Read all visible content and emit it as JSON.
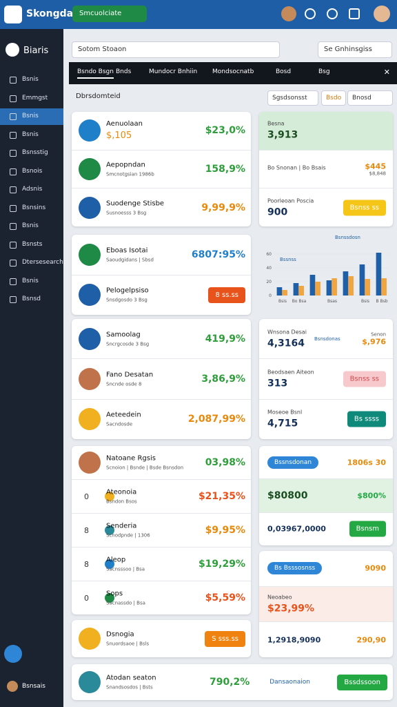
{
  "header": {
    "brand": "Skongdal",
    "selector": "Smcuolciate"
  },
  "sidebar": {
    "title": "Biaris",
    "active": 2,
    "items": [
      "Bsnis",
      "Emmgst",
      "Bsnis",
      "Bsnis",
      "Bsnsstig",
      "Bsnois",
      "Adsnis",
      "Bsnsins",
      "Bsnis",
      "Bsnsts",
      "Dtersesearch",
      "Bsnis",
      "Bsnsd"
    ],
    "user": "Bsnsais"
  },
  "search": {
    "placeholder": "Sotom Stoaon",
    "dropdown": "Se Gnhinsgiss"
  },
  "tabs": [
    "Bsndo Bsgn",
    "Bnds",
    "Mundocr Bnhiin",
    "Mondsocnatb",
    "Bosd",
    "Bsg"
  ],
  "filter": {
    "title": "Dbrsdomteid",
    "buttons": [
      "Sgsdsonsst",
      "Bsdo",
      "Bnosd"
    ]
  },
  "left_cards": [
    {
      "rows": [
        {
          "title": "Aenuolaan",
          "subtitle": "$,105",
          "value": "$23,0%",
          "color": "#2e9e3a"
        },
        {
          "title": "Aepopndan",
          "subtitle": "Smcnotgsian 1986b",
          "value": "158,9%",
          "color": "#2e9e3a"
        },
        {
          "title": "Suodenge Stisbe",
          "subtitle": "Susnoesss 3 Bsg",
          "value": "9,99,9%",
          "color": "#e8890c"
        }
      ]
    },
    {
      "rows": [
        {
          "title": "Eboas Isotai",
          "subtitle": "Saoudgidans | Sbsd",
          "value": "6807:95%",
          "color": "#1f7fc9"
        },
        {
          "title": "Pelogelpsiso",
          "subtitle": "Snsdgosdo 3 Bsg",
          "button": "8 ss.ss",
          "color": "#e8531c"
        }
      ]
    },
    {
      "rows": [
        {
          "title": "Samoolag",
          "subtitle": "Sncrgcosde 3 Bsg",
          "value": "419,9%",
          "color": "#2e9e3a"
        },
        {
          "title": "Fano Desatan",
          "subtitle": "Sncnde osde 8",
          "value": "3,86,9%",
          "color": "#2e9e3a"
        },
        {
          "title": "Aeteedein",
          "subtitle": "Sacndosde",
          "value": "2,087,99%",
          "color": "#e8890c"
        }
      ]
    },
    {
      "rows": [
        {
          "title": "Natoane Rgsis",
          "subtitle": "Scnoion | Bsnde | Bsde Bsnsdon",
          "value": "03,98%",
          "color": "#2e9e3a"
        },
        {
          "index": "0",
          "title": "Ateonoia",
          "subtitle": "Bsndon Bsos",
          "value": "$21,35%",
          "color": "#e8531c"
        },
        {
          "index": "8",
          "title": "Senderia",
          "subtitle": "Scnodpnde | 1306",
          "value": "$9,95%",
          "color": "#e8890c"
        },
        {
          "index": "8",
          "title": "Aleop",
          "subtitle": "Sacnsssoo | Bsa",
          "value": "$19,29%",
          "color": "#2e9e3a"
        },
        {
          "index": "0",
          "title": "Sops",
          "subtitle": "Sacnassdo | Bsa",
          "value": "$5,59%",
          "color": "#e8531c"
        }
      ]
    },
    {
      "rows": [
        {
          "title": "Dsnogia",
          "subtitle": "Snuordsaoe | Bsls",
          "button": "S sss.ss",
          "color": "#f0820f"
        }
      ]
    },
    {
      "rows": [
        {
          "title": "Atodan seaton",
          "subtitle": "Snandsosdos | Bsts",
          "value": "790,2%",
          "color": "#2e9e3a",
          "extra": "Dansaonaion",
          "button": "Bssdssoon"
        }
      ]
    }
  ],
  "right_cards": [
    {
      "rows": [
        {
          "label": "Besna",
          "value": "3,913",
          "bg": "#d5ecd9"
        },
        {
          "label": "Bo Snonan | Bo Bsais",
          "value2": "$445",
          "note2": "$8,848"
        },
        {
          "label": "Poorleoan Poscia",
          "value": "900",
          "button": "Bsnss ss",
          "color": "#f5c518"
        }
      ]
    },
    {
      "rows": [
        {
          "label": "Wnsona Desai",
          "value": "4,3164",
          "note": "Bsnsdonas",
          "value2": "$,976",
          "note2": "Senon"
        },
        {
          "label": "Beodsaen Aiteon",
          "value": "313",
          "button": "Bsnss ss",
          "color": "#f7c9cc"
        },
        {
          "label": "Moseoe Bsnl",
          "value": "4,715",
          "button": "Bs ssss",
          "color": "#0f8a7a"
        }
      ]
    },
    {
      "rows": [
        {
          "pill": "Bssnsdonan",
          "value2": "1806s 30"
        },
        {
          "value": "$80800",
          "value2": "$800%",
          "bg": "#e1f2e3"
        },
        {
          "value": "0,03967,0000",
          "button": "Bsnsm",
          "color": "#23a844"
        }
      ]
    },
    {
      "rows": [
        {
          "pill": "Bs Bsssosnss",
          "value2": "9090"
        },
        {
          "label": "Neoabeo",
          "value": "$23,99%",
          "bg": "#fbece8"
        },
        {
          "value": "1,2918,9090",
          "value2": "290,90"
        }
      ]
    }
  ],
  "chart_data": {
    "type": "bar",
    "legend": [
      "Bsnssdosn",
      "Bssnss"
    ],
    "categories": [
      "Bsis",
      "Bo Bsa",
      null,
      "Bsas",
      null,
      "Bsis",
      "B Bsb"
    ],
    "series": [
      {
        "name": "Bsnssdosn",
        "color": "#1f5fa8",
        "values": [
          12,
          18,
          30,
          22,
          35,
          45,
          62
        ]
      },
      {
        "name": "Bssnss",
        "color": "#f0a540",
        "values": [
          8,
          14,
          20,
          25,
          28,
          24,
          25
        ]
      }
    ],
    "ylim": [
      0,
      70
    ],
    "yticks": [
      0,
      20,
      40,
      60
    ]
  }
}
